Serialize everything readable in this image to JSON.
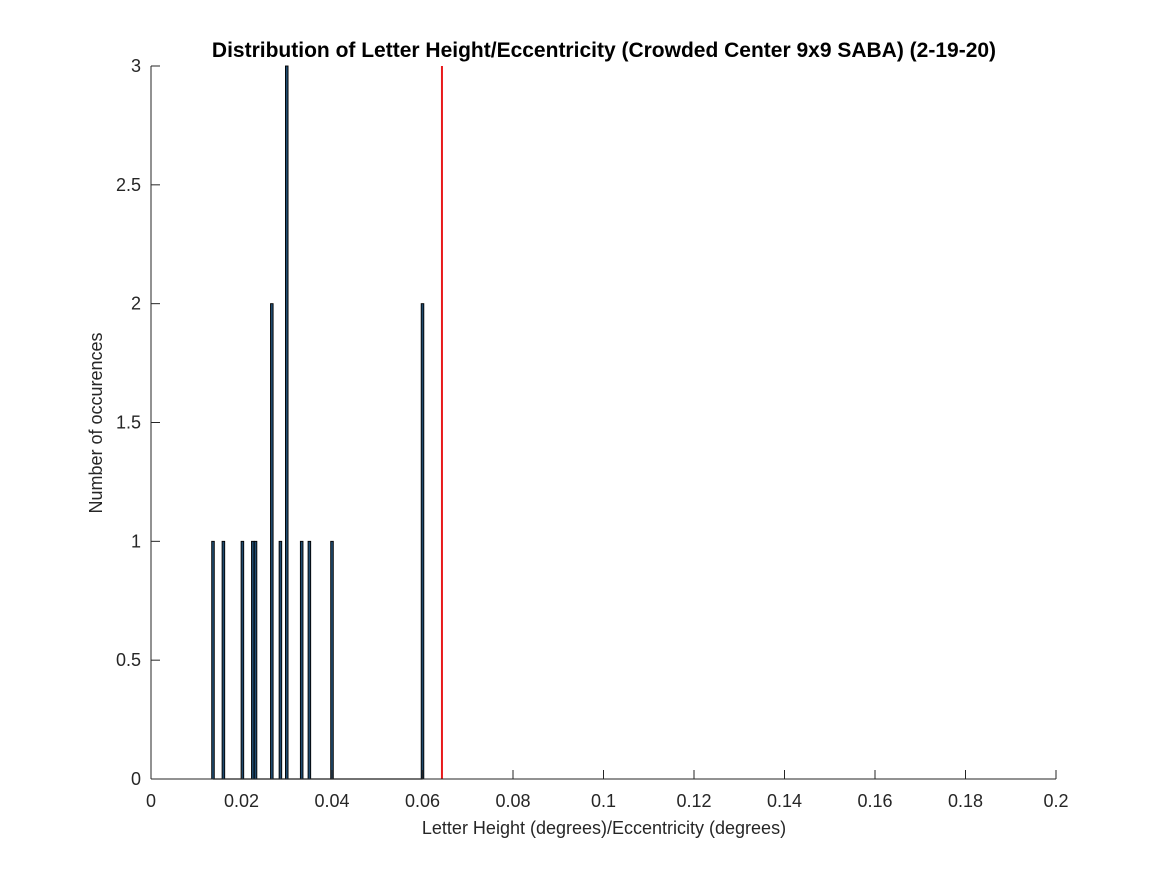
{
  "chart_data": {
    "type": "bar",
    "title": "Distribution of Letter Height/Eccentricity (Crowded Center 9x9 SABA) (2-19-20)",
    "xlabel": "Letter Height (degrees)/Eccentricity (degrees)",
    "ylabel": "Number of occurences",
    "xlim": [
      0,
      0.2
    ],
    "ylim": [
      0,
      3
    ],
    "xticks": [
      0,
      0.02,
      0.04,
      0.06,
      0.08,
      0.1,
      0.12,
      0.14,
      0.16,
      0.18,
      0.2
    ],
    "xtick_labels": [
      "0",
      "0.02",
      "0.04",
      "0.06",
      "0.08",
      "0.1",
      "0.12",
      "0.14",
      "0.16",
      "0.18",
      "0.2"
    ],
    "yticks": [
      0,
      0.5,
      1,
      1.5,
      2,
      2.5,
      3
    ],
    "ytick_labels": [
      "0",
      "0.5",
      "1",
      "1.5",
      "2",
      "2.5",
      "3"
    ],
    "grid": false,
    "bin_width": 0.0004,
    "bars": [
      {
        "x": 0.0137,
        "count": 1
      },
      {
        "x": 0.016,
        "count": 1
      },
      {
        "x": 0.0202,
        "count": 1
      },
      {
        "x": 0.0225,
        "count": 1
      },
      {
        "x": 0.0231,
        "count": 1
      },
      {
        "x": 0.0267,
        "count": 2
      },
      {
        "x": 0.0286,
        "count": 1
      },
      {
        "x": 0.03,
        "count": 3
      },
      {
        "x": 0.0333,
        "count": 1
      },
      {
        "x": 0.035,
        "count": 1
      },
      {
        "x": 0.04,
        "count": 1
      },
      {
        "x": 0.06,
        "count": 2
      }
    ],
    "histogram_span": [
      0.0137,
      0.06
    ],
    "reference_line": {
      "x": 0.0643,
      "color": "#e8191b"
    },
    "bar_color": "#1f4a6e",
    "bar_edge_color": "#000000"
  }
}
